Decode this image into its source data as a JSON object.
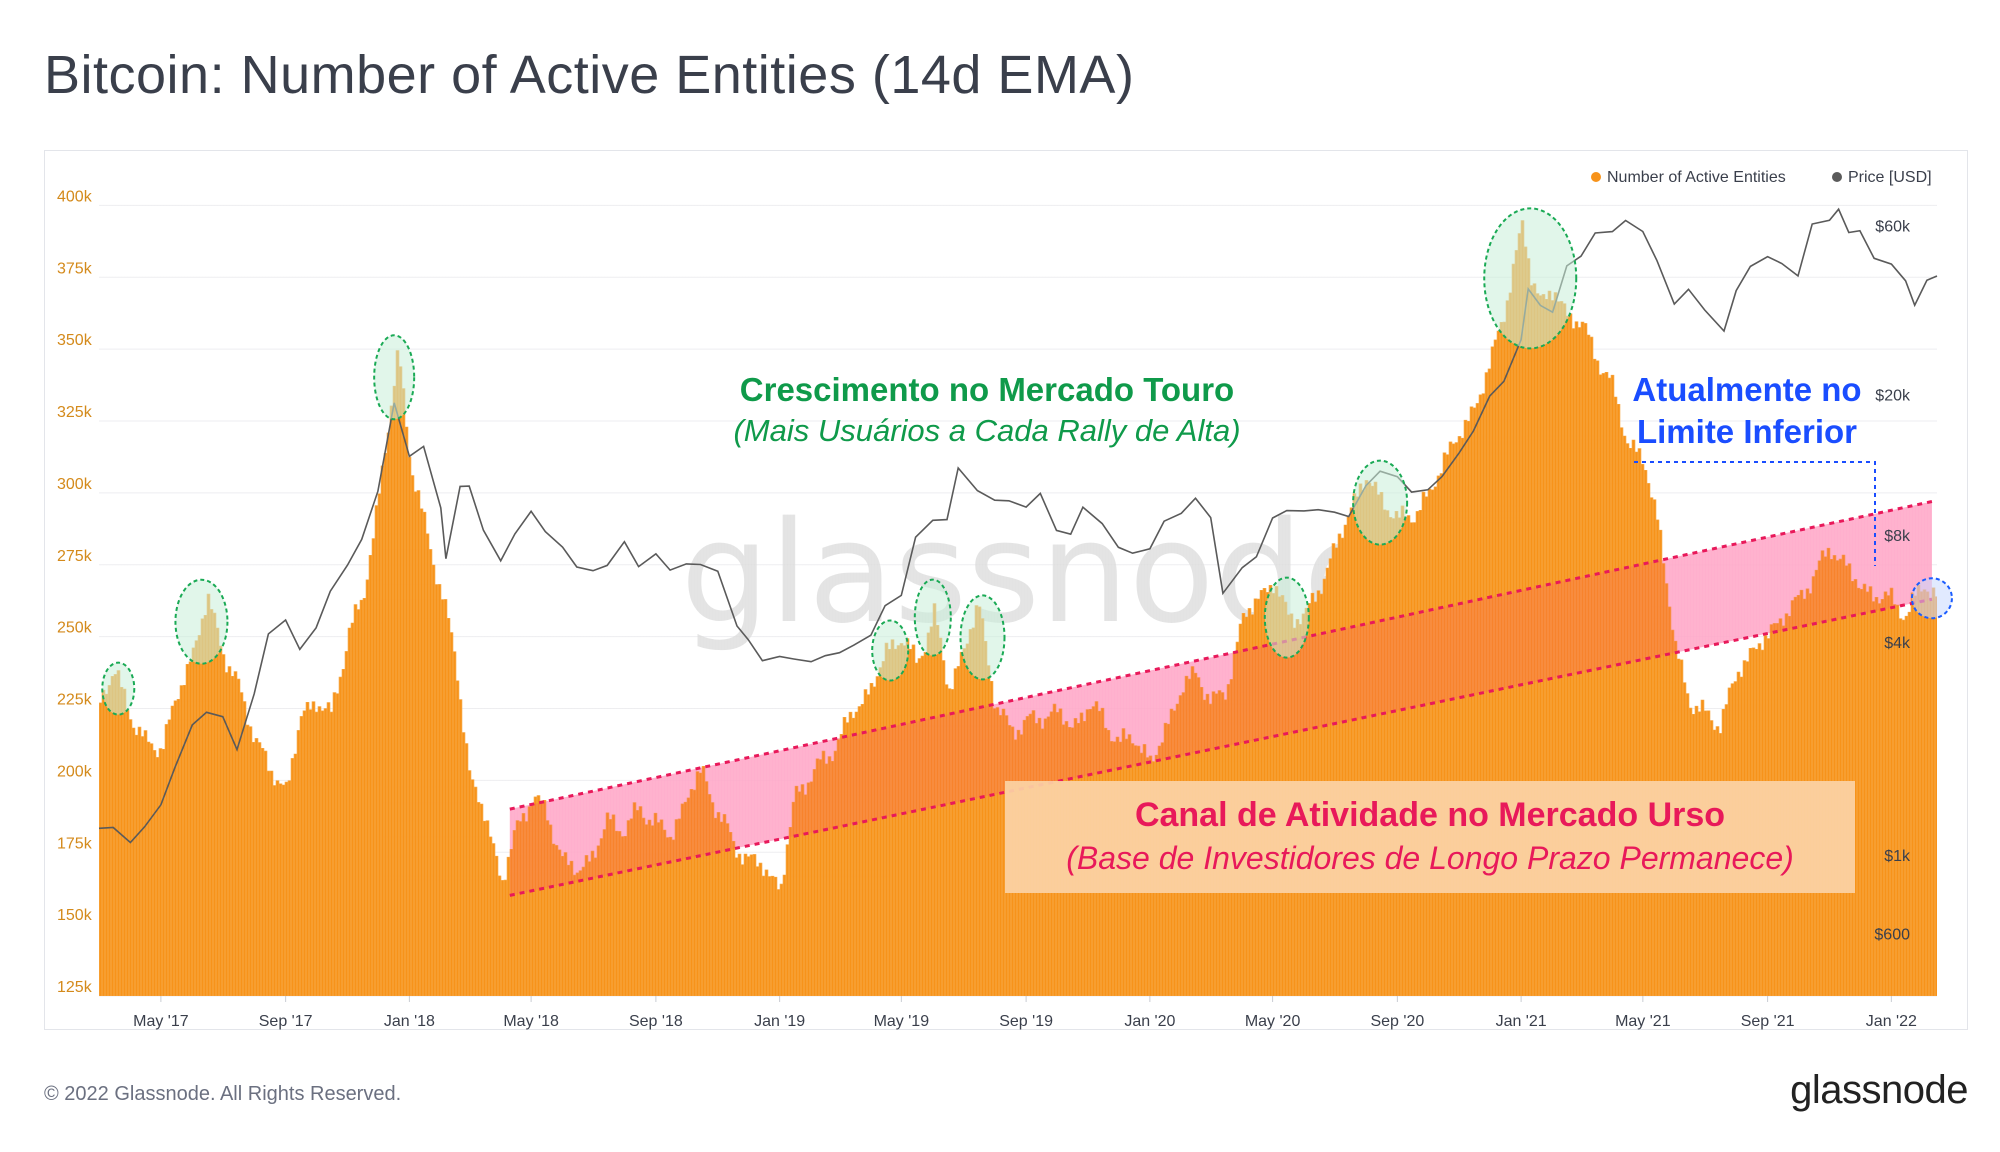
{
  "title": "Bitcoin: Number of Active Entities (14d EMA)",
  "footer": "© 2022 Glassnode. All Rights Reserved.",
  "brand": "glassnode",
  "watermark": "glassnode",
  "colors": {
    "entities": "#f7931a",
    "price": "#5a5a5a",
    "channel_fill": "#ffc0d8",
    "channel_line": "#e8195a",
    "bull_circle": "#1aaa55",
    "current_circle": "#1a5cff",
    "bull_text": "#0f9a4a",
    "bear_text": "#e8195a",
    "current_text": "#1a4dff"
  },
  "annotations": {
    "bull_title": "Crescimento no Mercado Touro",
    "bull_sub": "(Mais Usuários a Cada Rally de Alta)",
    "bear_title": "Canal de Atividade no Mercado Urso",
    "bear_sub": "(Base de Investidores de Longo Prazo Permanece)",
    "current_line1": "Atualmente no",
    "current_line2": "Limite Inferior"
  },
  "chart_data": {
    "type": "area",
    "title": "Bitcoin: Number of Active Entities (14d EMA)",
    "legend": [
      "Number of Active Entities",
      "Price [USD]"
    ],
    "legend_position": "top-right",
    "x_ticks": [
      "May '17",
      "Sep '17",
      "Jan '18",
      "May '18",
      "Sep '18",
      "Jan '19",
      "May '19",
      "Sep '19",
      "Jan '20",
      "May '20",
      "Sep '20",
      "Jan '21",
      "May '21",
      "Sep '21",
      "Jan '22"
    ],
    "x_range": [
      "2017-03-01",
      "2022-02-15"
    ],
    "y_left": {
      "label": "Number of Active Entities",
      "ticks": [
        "125k",
        "150k",
        "175k",
        "200k",
        "225k",
        "250k",
        "275k",
        "300k",
        "325k",
        "350k",
        "375k",
        "400k"
      ],
      "range": [
        125000,
        405000
      ]
    },
    "y_right": {
      "label": "Price [USD]",
      "scale": "log",
      "ticks": [
        "$600",
        "$1k",
        "$4k",
        "$8k",
        "$20k",
        "$60k"
      ],
      "tick_values": [
        600,
        1000,
        4000,
        8000,
        20000,
        60000
      ]
    },
    "series": [
      {
        "name": "Number of Active Entities",
        "x": [
          "2017-03-01",
          "2017-03-15",
          "2017-04-01",
          "2017-04-15",
          "2017-05-01",
          "2017-05-15",
          "2017-06-01",
          "2017-06-15",
          "2017-07-01",
          "2017-07-15",
          "2017-08-01",
          "2017-08-15",
          "2017-09-01",
          "2017-09-15",
          "2017-10-01",
          "2017-10-15",
          "2017-11-01",
          "2017-11-15",
          "2017-12-01",
          "2017-12-10",
          "2017-12-20",
          "2018-01-01",
          "2018-01-15",
          "2018-02-01",
          "2018-02-15",
          "2018-03-01",
          "2018-03-15",
          "2018-04-01",
          "2018-04-15",
          "2018-05-01",
          "2018-05-15",
          "2018-06-01",
          "2018-06-15",
          "2018-07-01",
          "2018-07-15",
          "2018-08-01",
          "2018-08-15",
          "2018-09-01",
          "2018-09-15",
          "2018-10-01",
          "2018-10-15",
          "2018-11-01",
          "2018-11-15",
          "2018-12-01",
          "2018-12-15",
          "2019-01-01",
          "2019-01-15",
          "2019-02-01",
          "2019-02-15",
          "2019-03-01",
          "2019-03-15",
          "2019-04-01",
          "2019-04-15",
          "2019-05-01",
          "2019-05-15",
          "2019-06-01",
          "2019-06-15",
          "2019-07-01",
          "2019-07-15",
          "2019-08-01",
          "2019-08-15",
          "2019-09-01",
          "2019-09-15",
          "2019-10-01",
          "2019-10-15",
          "2019-11-01",
          "2019-11-15",
          "2019-12-01",
          "2019-12-15",
          "2020-01-01",
          "2020-01-15",
          "2020-02-01",
          "2020-02-15",
          "2020-03-01",
          "2020-03-15",
          "2020-04-01",
          "2020-04-15",
          "2020-05-01",
          "2020-05-15",
          "2020-06-01",
          "2020-06-15",
          "2020-07-01",
          "2020-07-15",
          "2020-08-01",
          "2020-08-15",
          "2020-09-01",
          "2020-09-15",
          "2020-10-01",
          "2020-10-15",
          "2020-11-01",
          "2020-11-15",
          "2020-12-01",
          "2020-12-15",
          "2021-01-01",
          "2021-01-10",
          "2021-01-20",
          "2021-02-01",
          "2021-02-15",
          "2021-03-01",
          "2021-03-15",
          "2021-04-01",
          "2021-04-15",
          "2021-05-01",
          "2021-05-15",
          "2021-06-01",
          "2021-06-15",
          "2021-07-01",
          "2021-07-15",
          "2021-08-01",
          "2021-08-15",
          "2021-09-01",
          "2021-09-15",
          "2021-10-01",
          "2021-10-15",
          "2021-11-01",
          "2021-11-15",
          "2021-12-01",
          "2021-12-15",
          "2022-01-01",
          "2022-01-15",
          "2022-02-01",
          "2022-02-15"
        ],
        "values": [
          228000,
          238000,
          222000,
          212000,
          212000,
          228000,
          245000,
          263000,
          244000,
          232000,
          215000,
          203000,
          197000,
          222000,
          228000,
          222000,
          252000,
          262000,
          300000,
          322000,
          350000,
          310000,
          288000,
          265000,
          240000,
          200000,
          188000,
          165000,
          182000,
          195000,
          188000,
          172000,
          168000,
          175000,
          186000,
          183000,
          190000,
          185000,
          180000,
          195000,
          203000,
          188000,
          178000,
          172000,
          170000,
          162000,
          195000,
          202000,
          208000,
          215000,
          225000,
          232000,
          245000,
          250000,
          240000,
          258000,
          232000,
          245000,
          262000,
          225000,
          218000,
          220000,
          222000,
          224000,
          218000,
          226000,
          222000,
          212000,
          216000,
          205000,
          218000,
          232000,
          238000,
          226000,
          232000,
          256000,
          264000,
          268000,
          258000,
          256000,
          268000,
          280000,
          295000,
          305000,
          298000,
          290000,
          293000,
          298000,
          312000,
          320000,
          330000,
          345000,
          365000,
          392000,
          376000,
          366000,
          370000,
          362000,
          358000,
          348000,
          335000,
          318000,
          310000,
          290000,
          245000,
          228000,
          222000,
          220000,
          237000,
          245000,
          250000,
          258000,
          262000,
          272000,
          280000,
          276000,
          266000,
          265000,
          262000,
          258000,
          268000,
          264000
        ]
      },
      {
        "name": "Price [USD]",
        "x": [
          "2017-03-01",
          "2017-03-15",
          "2017-04-01",
          "2017-04-15",
          "2017-05-01",
          "2017-05-15",
          "2017-06-01",
          "2017-06-15",
          "2017-07-01",
          "2017-07-15",
          "2017-08-01",
          "2017-08-15",
          "2017-09-01",
          "2017-09-15",
          "2017-10-01",
          "2017-10-15",
          "2017-11-01",
          "2017-11-15",
          "2017-12-01",
          "2017-12-17",
          "2018-01-01",
          "2018-01-15",
          "2018-02-01",
          "2018-02-06",
          "2018-02-20",
          "2018-03-01",
          "2018-03-15",
          "2018-04-01",
          "2018-04-15",
          "2018-05-01",
          "2018-05-15",
          "2018-06-01",
          "2018-06-15",
          "2018-07-01",
          "2018-07-15",
          "2018-08-01",
          "2018-08-15",
          "2018-09-01",
          "2018-09-15",
          "2018-10-01",
          "2018-10-15",
          "2018-11-01",
          "2018-11-20",
          "2018-12-01",
          "2018-12-15",
          "2019-01-01",
          "2019-01-15",
          "2019-02-01",
          "2019-02-15",
          "2019-03-01",
          "2019-03-15",
          "2019-04-01",
          "2019-04-15",
          "2019-05-01",
          "2019-05-15",
          "2019-06-01",
          "2019-06-15",
          "2019-06-26",
          "2019-07-15",
          "2019-08-01",
          "2019-08-15",
          "2019-09-01",
          "2019-09-15",
          "2019-10-01",
          "2019-10-15",
          "2019-10-27",
          "2019-11-15",
          "2019-12-01",
          "2019-12-15",
          "2020-01-01",
          "2020-01-15",
          "2020-02-01",
          "2020-02-15",
          "2020-03-01",
          "2020-03-13",
          "2020-04-01",
          "2020-04-15",
          "2020-05-01",
          "2020-05-15",
          "2020-06-01",
          "2020-06-15",
          "2020-07-01",
          "2020-07-15",
          "2020-08-01",
          "2020-08-15",
          "2020-09-01",
          "2020-09-15",
          "2020-10-01",
          "2020-10-15",
          "2020-11-01",
          "2020-11-15",
          "2020-12-01",
          "2020-12-15",
          "2021-01-01",
          "2021-01-08",
          "2021-01-20",
          "2021-02-01",
          "2021-02-15",
          "2021-03-01",
          "2021-03-15",
          "2021-04-01",
          "2021-04-14",
          "2021-05-01",
          "2021-05-15",
          "2021-06-01",
          "2021-06-15",
          "2021-07-01",
          "2021-07-20",
          "2021-08-01",
          "2021-08-15",
          "2021-09-01",
          "2021-09-15",
          "2021-10-01",
          "2021-10-15",
          "2021-11-01",
          "2021-11-10",
          "2021-11-20",
          "2021-12-01",
          "2021-12-15",
          "2022-01-01",
          "2022-01-15",
          "2022-01-24",
          "2022-02-05",
          "2022-02-15"
        ],
        "values": [
          1190,
          1220,
          1080,
          1180,
          1400,
          1800,
          2300,
          2500,
          2500,
          2000,
          2800,
          4200,
          4700,
          3800,
          4300,
          5600,
          6700,
          7700,
          10500,
          19200,
          13500,
          14000,
          9500,
          7000,
          11000,
          10800,
          8300,
          6900,
          8000,
          9200,
          8300,
          7500,
          6400,
          6300,
          6700,
          7700,
          6400,
          7100,
          6500,
          6600,
          6500,
          6400,
          4500,
          4000,
          3500,
          3700,
          3600,
          3450,
          3650,
          3800,
          3900,
          4100,
          5100,
          5500,
          7800,
          8700,
          9000,
          12500,
          10500,
          10000,
          10200,
          9600,
          10300,
          8300,
          8200,
          9500,
          8500,
          7500,
          7200,
          7200,
          8700,
          9400,
          10200,
          8800,
          5500,
          6600,
          6900,
          8800,
          9500,
          9500,
          9300,
          9200,
          9200,
          11100,
          11900,
          11700,
          10800,
          10700,
          11500,
          13800,
          16000,
          19500,
          21500,
          29000,
          40000,
          35000,
          34000,
          47000,
          49000,
          56000,
          58000,
          63000,
          57000,
          47000,
          36500,
          40000,
          34000,
          30000,
          40000,
          46000,
          48000,
          47000,
          44000,
          60000,
          61000,
          67500,
          58000,
          57000,
          48000,
          47500,
          42000,
          35000,
          42000,
          44000
        ]
      }
    ],
    "annotation_regions": {
      "bull_peaks": [
        "2017-03-20",
        "2017-06-10",
        "2017-12-17",
        "2019-04-20",
        "2019-06-01",
        "2019-07-20",
        "2020-05-15",
        "2020-08-15",
        "2021-01-10",
        "2022-02-10"
      ],
      "bear_channel": {
        "start": "2018-04-10",
        "end": "2022-02-10",
        "lower_start": 160000,
        "lower_end": 263000,
        "upper_start": 190000,
        "upper_end": 297000
      }
    }
  }
}
